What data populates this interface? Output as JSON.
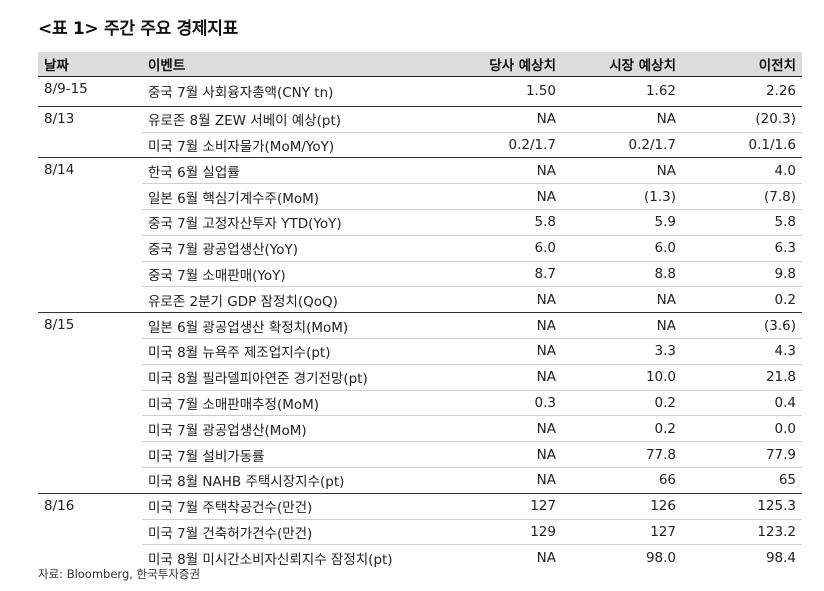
{
  "title": "<표 1> 주간 주요 경제지표",
  "headers": [
    "날짜",
    "이벤트",
    "당사 예상치",
    "시장 예상치",
    "이전치"
  ],
  "groups": [
    {
      "date": "8/9-15",
      "rows": [
        {
          "event": "중국 7월 사회융자총액(CNY tn)",
          "house": "1.50",
          "market": "1.62",
          "prev": "2.26"
        }
      ]
    },
    {
      "date": "8/13",
      "rows": [
        {
          "event": "유로존 8월 ZEW 서베이 예상(pt)",
          "house": "NA",
          "market": "NA",
          "prev": "(20.3)"
        },
        {
          "event": "미국 7월 소비자물가(MoM/YoY)",
          "house": "0.2/1.7",
          "market": "0.2/1.7",
          "prev": "0.1/1.6"
        }
      ]
    },
    {
      "date": "8/14",
      "rows": [
        {
          "event": "한국 6월 실업률",
          "house": "NA",
          "market": "NA",
          "prev": "4.0"
        },
        {
          "event": "일본 6월 핵심기계수주(MoM)",
          "house": "NA",
          "market": "(1.3)",
          "prev": "(7.8)"
        },
        {
          "event": "중국 7월 고정자산투자 YTD(YoY)",
          "house": "5.8",
          "market": "5.9",
          "prev": "5.8"
        },
        {
          "event": "중국 7월 광공업생산(YoY)",
          "house": "6.0",
          "market": "6.0",
          "prev": "6.3"
        },
        {
          "event": "중국 7월 소매판매(YoY)",
          "house": "8.7",
          "market": "8.8",
          "prev": "9.8"
        },
        {
          "event": "유로존 2분기 GDP 잠정치(QoQ)",
          "house": "NA",
          "market": "NA",
          "prev": "0.2"
        }
      ]
    },
    {
      "date": "8/15",
      "rows": [
        {
          "event": "일본 6월 광공업생산 확정치(MoM)",
          "house": "NA",
          "market": "NA",
          "prev": "(3.6)"
        },
        {
          "event": "미국 8월 뉴욕주 제조업지수(pt)",
          "house": "NA",
          "market": "3.3",
          "prev": "4.3"
        },
        {
          "event": "미국 8월 필라델피아연준 경기전망(pt)",
          "house": "NA",
          "market": "10.0",
          "prev": "21.8"
        },
        {
          "event": "미국 7월 소매판매추정(MoM)",
          "house": "0.3",
          "market": "0.2",
          "prev": "0.4"
        },
        {
          "event": "미국 7월 광공업생산(MoM)",
          "house": "NA",
          "market": "0.2",
          "prev": "0.0"
        },
        {
          "event": "미국 7월 설비가동률",
          "house": "NA",
          "market": "77.8",
          "prev": "77.9"
        },
        {
          "event": "미국 8월 NAHB 주택시장지수(pt)",
          "house": "NA",
          "market": "66",
          "prev": "65"
        }
      ]
    },
    {
      "date": "8/16",
      "rows": [
        {
          "event": "미국 7월 주택착공건수(만건)",
          "house": "127",
          "market": "126",
          "prev": "125.3"
        },
        {
          "event": "미국 7월 건축허가건수(만건)",
          "house": "129",
          "market": "127",
          "prev": "123.2"
        },
        {
          "event": "미국 8월 미시간소비자신뢰지수 잠정치(pt)",
          "house": "NA",
          "market": "98.0",
          "prev": "98.4"
        }
      ]
    }
  ],
  "source": "자료: Bloomberg, 한국투자증권"
}
